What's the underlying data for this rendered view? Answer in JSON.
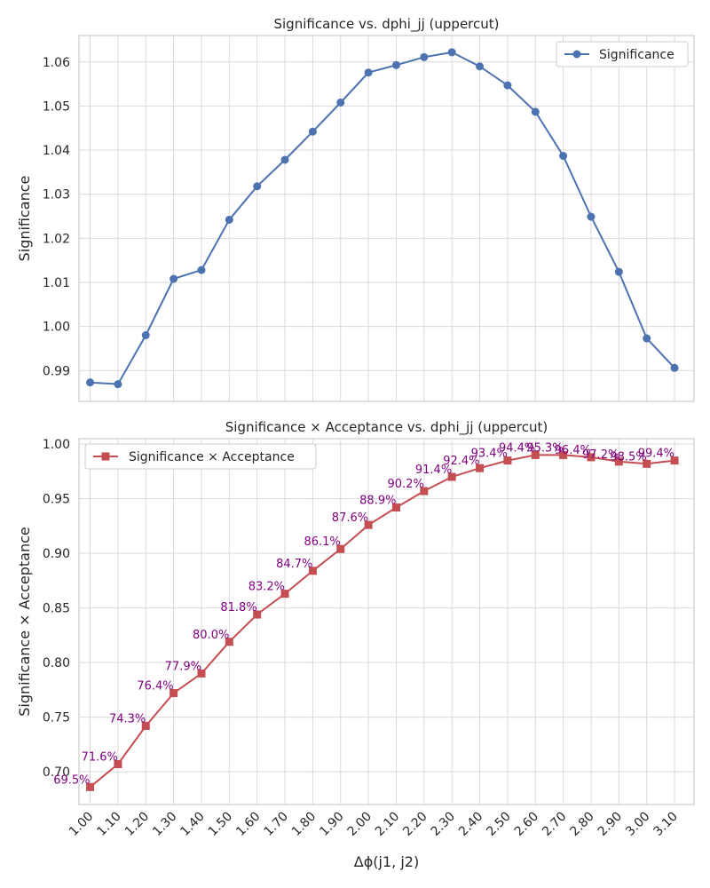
{
  "chart_data": [
    {
      "type": "line",
      "title": "Significance vs. dphi_jj (uppercut)",
      "xlabel": "",
      "ylabel": "Significance",
      "grid": true,
      "legend_position": "top-right",
      "x": [
        1.0,
        1.1,
        1.2,
        1.3,
        1.4,
        1.5,
        1.6,
        1.7,
        1.8,
        1.9,
        2.0,
        2.1,
        2.2,
        2.3,
        2.4,
        2.5,
        2.6,
        2.7,
        2.8,
        2.9,
        3.0,
        3.1
      ],
      "ylim": [
        0.983,
        1.066
      ],
      "yticks": [
        "0.99",
        "1.00",
        "1.01",
        "1.02",
        "1.03",
        "1.04",
        "1.05",
        "1.06"
      ],
      "series": [
        {
          "name": "Significance",
          "color": "#4c72b0",
          "marker": "circle",
          "values": [
            0.9873,
            0.9869,
            0.998,
            1.0108,
            1.0128,
            1.0242,
            1.0318,
            1.0378,
            1.0442,
            1.0508,
            1.0576,
            1.0593,
            1.0611,
            1.0622,
            1.059,
            1.0547,
            1.0487,
            1.0387,
            1.0249,
            1.0124,
            0.9973,
            0.9906
          ]
        }
      ]
    },
    {
      "type": "line",
      "title": "Significance × Acceptance vs. dphi_jj (uppercut)",
      "xlabel": "Δϕ(j1, j2)",
      "ylabel": "Significance × Acceptance",
      "grid": true,
      "legend_position": "top-left",
      "x": [
        1.0,
        1.1,
        1.2,
        1.3,
        1.4,
        1.5,
        1.6,
        1.7,
        1.8,
        1.9,
        2.0,
        2.1,
        2.2,
        2.3,
        2.4,
        2.5,
        2.6,
        2.7,
        2.8,
        2.9,
        3.0,
        3.1
      ],
      "xticks": [
        "1.00",
        "1.10",
        "1.20",
        "1.30",
        "1.40",
        "1.50",
        "1.60",
        "1.70",
        "1.80",
        "1.90",
        "2.00",
        "2.10",
        "2.20",
        "2.30",
        "2.40",
        "2.50",
        "2.60",
        "2.70",
        "2.80",
        "2.90",
        "3.00",
        "3.10"
      ],
      "ylim": [
        0.67,
        1.005
      ],
      "yticks": [
        "0.70",
        "0.75",
        "0.80",
        "0.85",
        "0.90",
        "0.95",
        "1.00"
      ],
      "series": [
        {
          "name": "Significance × Acceptance",
          "color": "#c44e52",
          "marker": "square",
          "values": [
            0.686,
            0.707,
            0.742,
            0.772,
            0.79,
            0.819,
            0.844,
            0.863,
            0.884,
            0.904,
            0.926,
            0.942,
            0.957,
            0.97,
            0.978,
            0.985,
            0.99,
            0.99,
            0.988,
            0.984,
            0.982,
            0.985
          ]
        }
      ],
      "annotations": [
        "69.5%",
        "71.6%",
        "74.3%",
        "76.4%",
        "77.9%",
        "80.0%",
        "81.8%",
        "83.2%",
        "84.7%",
        "86.1%",
        "87.6%",
        "88.9%",
        "90.2%",
        "91.4%",
        "92.4%",
        "93.4%",
        "94.4%",
        "95.3%",
        "96.4%",
        "97.2%",
        "98.5%",
        "99.4%"
      ]
    }
  ]
}
